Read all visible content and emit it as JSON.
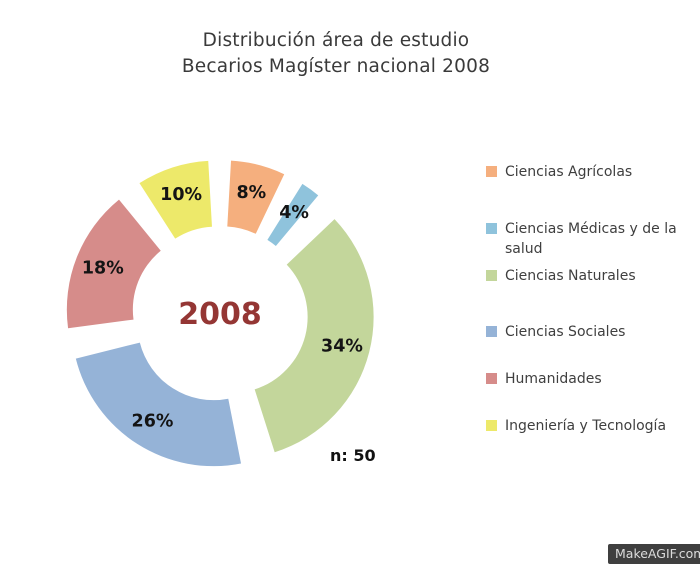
{
  "title": {
    "line1": "Distribución área de estudio",
    "line2": "Becarios Magíster nacional 2008"
  },
  "chart_data": {
    "type": "pie",
    "subtype": "exploded-donut",
    "title": "Distribución área de estudio Becarios Magíster nacional 2008",
    "center_label": "2008",
    "annotation": "n: 50",
    "unit": "%",
    "direction": "clockwise",
    "start_angle_deg": 0,
    "legend_position": "right",
    "categories": [
      "Ciencias Agrícolas",
      "Ciencias Médicas y de la salud",
      "Ciencias Naturales",
      "Ciencias Sociales",
      "Humanidades",
      "Ingeniería y Tecnología"
    ],
    "values": [
      8,
      4,
      34,
      26,
      18,
      10
    ],
    "labels": [
      "8%",
      "4%",
      "34%",
      "26%",
      "18%",
      "10%"
    ],
    "colors": [
      "#F5AF7E",
      "#8FC3DC",
      "#C3D69B",
      "#95B3D7",
      "#D68C8A",
      "#EDE96A"
    ]
  },
  "watermark": {
    "text": "MakeAGIF.com"
  },
  "colors": {
    "background": "#FFFFFF",
    "title_text": "#3A3A3A",
    "slice_label": "#141414",
    "center_label": "#943634",
    "legend_text": "#3F3F3F",
    "watermark_bg": "#3F3F3F",
    "watermark_text": "#DCDCDC"
  }
}
